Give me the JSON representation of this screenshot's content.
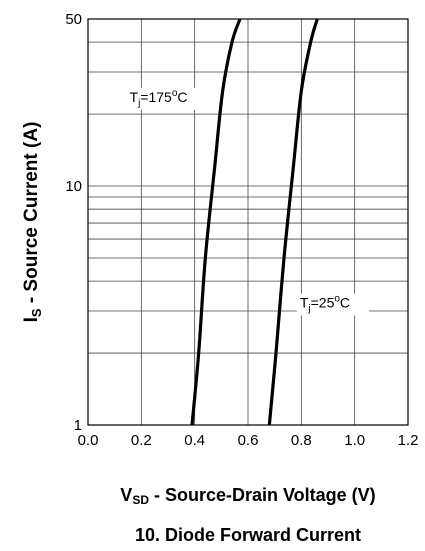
{
  "chart_data": {
    "type": "line",
    "title": "10. Diode Forward Current",
    "xlabel": {
      "main": "V",
      "sub": "SD",
      "rest": " - Source-Drain Voltage (V)"
    },
    "ylabel": {
      "main": "I",
      "sub": "S",
      "rest": " - Source Current (A)"
    },
    "xlim": [
      0.0,
      1.2
    ],
    "ylim": [
      1,
      50
    ],
    "yscale": "log",
    "grid": true,
    "x_ticks": [
      "0.0",
      "0.2",
      "0.4",
      "0.6",
      "0.8",
      "1.0",
      "1.2"
    ],
    "y_ticks": [
      "1",
      "10",
      "50"
    ],
    "series": [
      {
        "name": "Tj=175°C",
        "label_parts": {
          "main": "T",
          "sub": "j",
          "mid": "=175",
          "sup": "o",
          "end": "C"
        },
        "x": [
          0.39,
          0.415,
          0.44,
          0.475,
          0.505,
          0.54,
          0.57
        ],
        "y": [
          1,
          2,
          5,
          12,
          25,
          40,
          50
        ]
      },
      {
        "name": "Tj=25°C",
        "label_parts": {
          "main": "T",
          "sub": "j",
          "mid": "=25",
          "sup": "o",
          "end": "C"
        },
        "x": [
          0.68,
          0.705,
          0.735,
          0.77,
          0.8,
          0.835,
          0.86
        ],
        "y": [
          1,
          2,
          5,
          12,
          25,
          40,
          50
        ]
      }
    ]
  }
}
